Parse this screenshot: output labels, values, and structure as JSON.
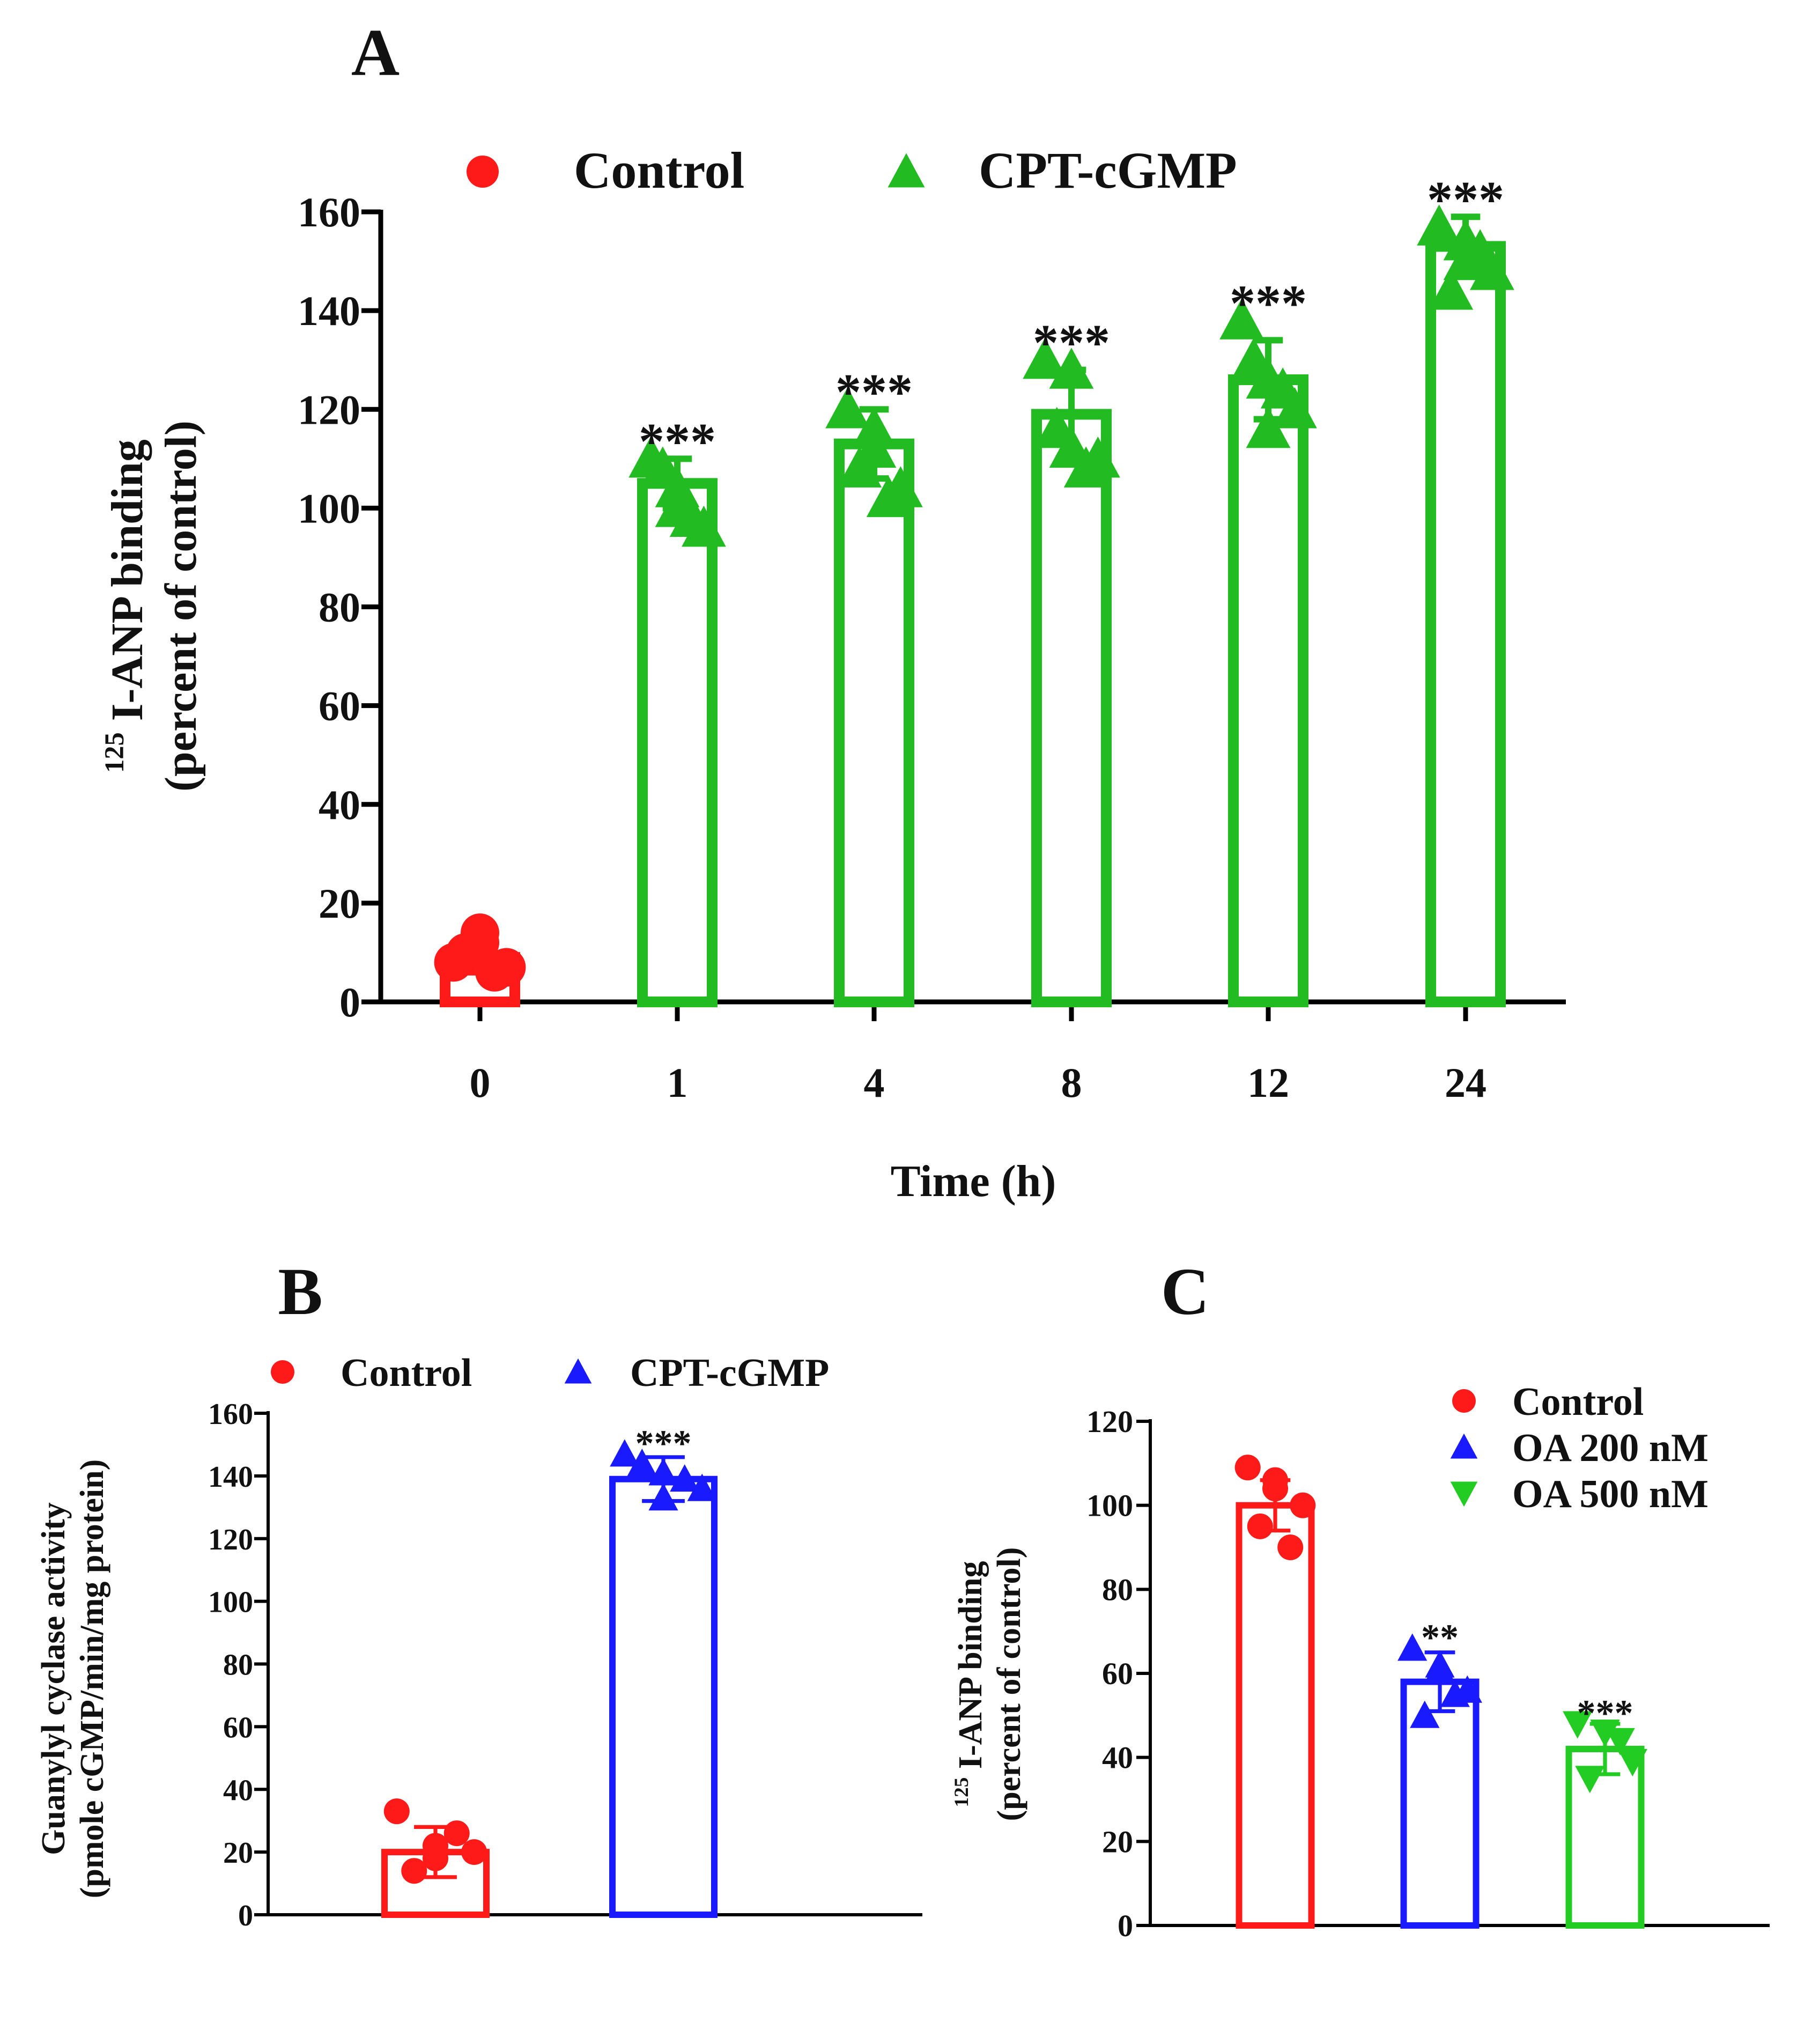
{
  "chart_data": [
    {
      "panel": "A",
      "type": "bar",
      "xlabel": "Time (h)",
      "ylabel_lines": [
        "125",
        "I-ANP binding",
        "(percent of control)"
      ],
      "ylim": [
        0,
        160
      ],
      "yticks": [
        "0",
        "20",
        "40",
        "60",
        "80",
        "100",
        "120",
        "140",
        "160"
      ],
      "categories": [
        "0",
        "1",
        "4",
        "8",
        "12",
        "24"
      ],
      "legend": [
        "Control",
        "CPT-cGMP"
      ],
      "legend_placement": "top",
      "series": [
        {
          "name": "Control",
          "color": "#ff1a1a",
          "marker": "circle",
          "values": [
            9,
            null,
            null,
            null,
            null,
            null
          ],
          "errors": [
            3,
            null,
            null,
            null,
            null,
            null
          ]
        },
        {
          "name": "CPT-cGMP",
          "color": "#22bb22",
          "marker": "triangle-up",
          "values": [
            null,
            105,
            113,
            119,
            126,
            153
          ],
          "errors": [
            null,
            5,
            7,
            9,
            8,
            6
          ]
        }
      ],
      "points": [
        [
          8,
          12,
          7,
          10,
          14,
          6
        ],
        [
          110,
          104,
          96,
          108,
          100,
          98
        ],
        [
          120,
          116,
          104,
          108,
          112,
          102
        ],
        [
          130,
          112,
          110,
          116,
          128,
          108
        ],
        [
          138,
          126,
          120,
          130,
          116,
          124
        ],
        [
          157,
          150,
          148,
          144,
          154,
          152
        ]
      ],
      "annotations": [
        "",
        "***",
        "***",
        "***",
        "***",
        "***"
      ]
    },
    {
      "panel": "B",
      "type": "bar",
      "ylabel_lines": [
        "Guanylyl cyclase activity",
        "(pmole cGMP/min/mg protein)"
      ],
      "ylim": [
        0,
        160
      ],
      "yticks": [
        "0",
        "20",
        "40",
        "60",
        "80",
        "100",
        "120",
        "140",
        "160"
      ],
      "categories": [
        "Control",
        "CPT-cGMP"
      ],
      "legend": [
        "Control",
        "CPT-cGMP"
      ],
      "legend_placement": "top",
      "series": [
        {
          "name": "Control",
          "color": "#ff1a1a",
          "marker": "circle",
          "values": [
            20,
            null
          ],
          "errors": [
            8,
            null
          ]
        },
        {
          "name": "CPT-cGMP",
          "color": "#1a1aff",
          "marker": "triangle-up",
          "values": [
            null,
            139
          ],
          "errors": [
            null,
            7
          ]
        }
      ],
      "points": [
        [
          33,
          18,
          20,
          14,
          22,
          26
        ],
        [
          147,
          141,
          136,
          144,
          133,
          139
        ]
      ],
      "annotations": [
        "",
        "***"
      ]
    },
    {
      "panel": "C",
      "type": "bar",
      "ylabel_lines": [
        "125",
        "I-ANP binding",
        "(percent of control)"
      ],
      "ylim": [
        0,
        120
      ],
      "yticks": [
        "0",
        "20",
        "40",
        "60",
        "80",
        "100",
        "120"
      ],
      "categories": [
        "Control",
        "OA 200 nM",
        "OA 500 nM"
      ],
      "legend": [
        "Control",
        "OA 200 nM",
        "OA 500 nM"
      ],
      "legend_placement": "top-right",
      "series": [
        {
          "name": "Control",
          "color": "#ff1a1a",
          "marker": "circle",
          "values": [
            100,
            null,
            null
          ],
          "errors": [
            6,
            null,
            null
          ]
        },
        {
          "name": "OA 200 nM",
          "color": "#1a1aff",
          "marker": "triangle-up",
          "values": [
            null,
            58,
            null
          ],
          "errors": [
            null,
            7,
            null
          ]
        },
        {
          "name": "OA 500 nM",
          "color": "#22cc22",
          "marker": "triangle-down",
          "values": [
            null,
            null,
            42
          ],
          "errors": [
            null,
            null,
            6
          ]
        }
      ],
      "points": [
        [
          109,
          104,
          100,
          95,
          106,
          90
        ],
        [
          66,
          61,
          56,
          50,
          62,
          55
        ],
        [
          48,
          46,
          39,
          35,
          46,
          44
        ]
      ],
      "annotations": [
        "",
        "**",
        "***"
      ]
    }
  ],
  "panel_letters": {
    "a": "A",
    "b": "B",
    "c": "C"
  }
}
